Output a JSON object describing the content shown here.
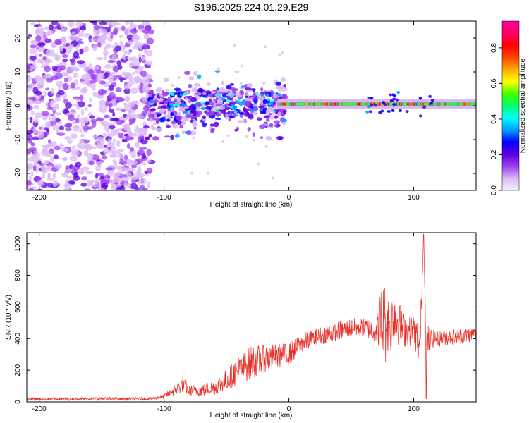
{
  "title": "S196.2025.224.01.29.E29",
  "colors": {
    "snr_line": "#e8312a",
    "colormap": [
      "#f7f0fd",
      "#d9b8f5",
      "#9b3cf0",
      "#5a00e0",
      "#0000ff",
      "#00a0ff",
      "#00ffff",
      "#00ff66",
      "#44ff00",
      "#ffff00",
      "#ffaa00",
      "#ff4400",
      "#ff0000",
      "#ff0066",
      "#ff0099"
    ]
  },
  "chart_data": [
    {
      "type": "heatmap",
      "name": "spectrogram",
      "xlabel": "Height of straight line (km)",
      "ylabel": "Frequency (Hz)",
      "xlim": [
        -210,
        150
      ],
      "ylim": [
        -25,
        25
      ],
      "xticks": [
        "-200",
        "-100",
        "0",
        "100"
      ],
      "yticks": [
        "-20",
        "-10",
        "0",
        "10",
        "20"
      ],
      "colorbar": {
        "label": "Normalized spectral amplitude",
        "range": [
          0,
          0.95
        ],
        "ticks": [
          "0.0",
          "0.2",
          "0.4",
          "0.6",
          "0.8"
        ]
      },
      "regions": [
        {
          "x_range": [
            -210,
            -110
          ],
          "freq_range": [
            -25,
            25
          ],
          "amplitude": "0.05-0.15",
          "description": "broadband noise"
        },
        {
          "x_range": [
            -110,
            -5
          ],
          "freq_range": [
            -15,
            7
          ],
          "amplitude": "0.1-0.35",
          "description": "scattered energy"
        },
        {
          "x_range": [
            -5,
            150
          ],
          "freq_center": 0.5,
          "bandwidth": 2,
          "amplitude": "0.6-0.95",
          "description": "narrow tonal band"
        }
      ]
    },
    {
      "type": "line",
      "name": "snr",
      "xlabel": "Height of straight line (km)",
      "ylabel": "SNR (10 * v/v)",
      "xlim": [
        -210,
        150
      ],
      "ylim": [
        0,
        1070
      ],
      "xticks": [
        "-200",
        "-100",
        "0",
        "100"
      ],
      "yticks": [
        "0",
        "200",
        "400",
        "600",
        "800",
        "1000"
      ],
      "series": [
        {
          "name": "SNR",
          "x": [
            -210,
            -190,
            -170,
            -150,
            -130,
            -110,
            -100,
            -90,
            -85,
            -80,
            -70,
            -60,
            -50,
            -40,
            -30,
            -20,
            -10,
            0,
            10,
            20,
            30,
            40,
            50,
            60,
            70,
            75,
            80,
            85,
            90,
            95,
            100,
            105,
            108,
            110,
            115,
            120,
            130,
            140,
            150
          ],
          "values": [
            20,
            18,
            19,
            20,
            18,
            20,
            35,
            80,
            110,
            70,
            75,
            90,
            140,
            200,
            250,
            270,
            290,
            300,
            370,
            400,
            430,
            450,
            470,
            470,
            450,
            500,
            480,
            560,
            470,
            440,
            460,
            350,
            1060,
            380,
            400,
            400,
            410,
            420,
            430
          ],
          "noise_amplitude": [
            10,
            10,
            10,
            10,
            10,
            10,
            15,
            40,
            50,
            35,
            40,
            50,
            70,
            90,
            110,
            90,
            80,
            70,
            60,
            60,
            60,
            60,
            60,
            60,
            70,
            300,
            200,
            200,
            120,
            100,
            100,
            150,
            0,
            120,
            60,
            50,
            50,
            50,
            50
          ]
        }
      ]
    }
  ]
}
